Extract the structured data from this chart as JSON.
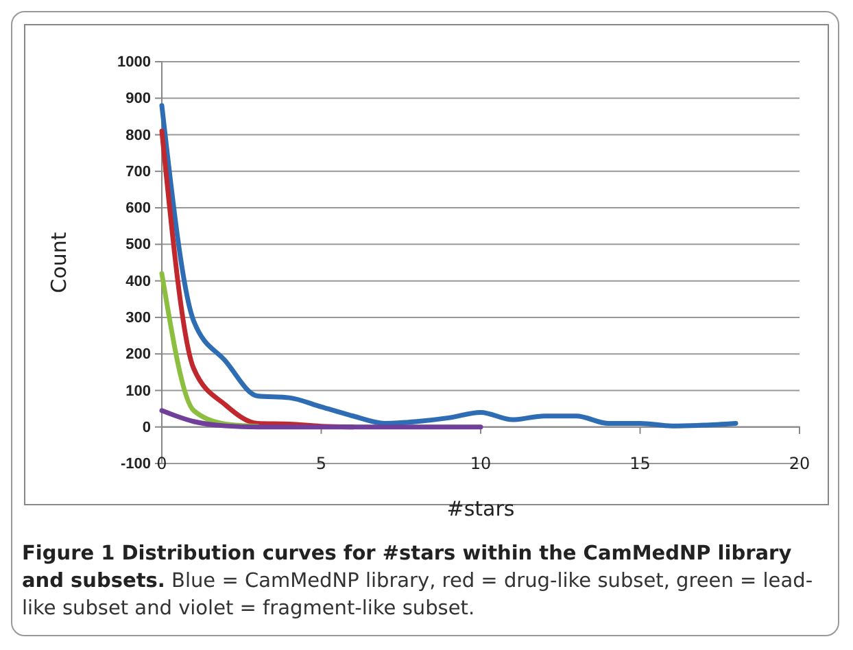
{
  "chart_data": {
    "type": "line",
    "xlabel": "#stars",
    "ylabel": "Count",
    "xlim": [
      0,
      20
    ],
    "xticks": [
      0,
      5,
      10,
      15,
      20
    ],
    "ylim": [
      -100,
      1000
    ],
    "yticks": [
      -100,
      0,
      100,
      200,
      300,
      400,
      500,
      600,
      700,
      800,
      900,
      1000
    ],
    "grid": "y",
    "marker": "none",
    "line_style": "solid",
    "series": [
      {
        "color": "#2e6db4",
        "x": [
          0,
          1,
          2,
          3,
          4,
          5,
          6,
          7,
          8,
          9,
          10,
          11,
          12,
          13,
          14,
          15,
          16,
          17,
          18
        ],
        "values": [
          880,
          290,
          180,
          85,
          80,
          55,
          30,
          10,
          15,
          25,
          40,
          20,
          30,
          30,
          10,
          10,
          3,
          5,
          10
        ]
      },
      {
        "color": "#c0282d",
        "x": [
          0,
          1,
          2,
          3,
          4,
          5,
          6
        ],
        "values": [
          810,
          160,
          60,
          10,
          8,
          2,
          0
        ]
      },
      {
        "color": "#8cbf3f",
        "x": [
          0,
          1,
          2,
          3
        ],
        "values": [
          420,
          45,
          8,
          2
        ]
      },
      {
        "color": "#6f3f9a",
        "x": [
          0,
          1,
          2,
          3,
          4,
          5,
          6,
          7,
          8,
          9,
          10
        ],
        "values": [
          45,
          15,
          3,
          0,
          0,
          0,
          0,
          0,
          0,
          0,
          0
        ]
      }
    ],
    "annotations": [
      "Figure 1 Distribution curves for #stars within the CamMedNP library and subsets.",
      "Blue = CamMedNP library, red = drug-like subset, green = lead-like subset and violet = fragment-like subset."
    ]
  }
}
